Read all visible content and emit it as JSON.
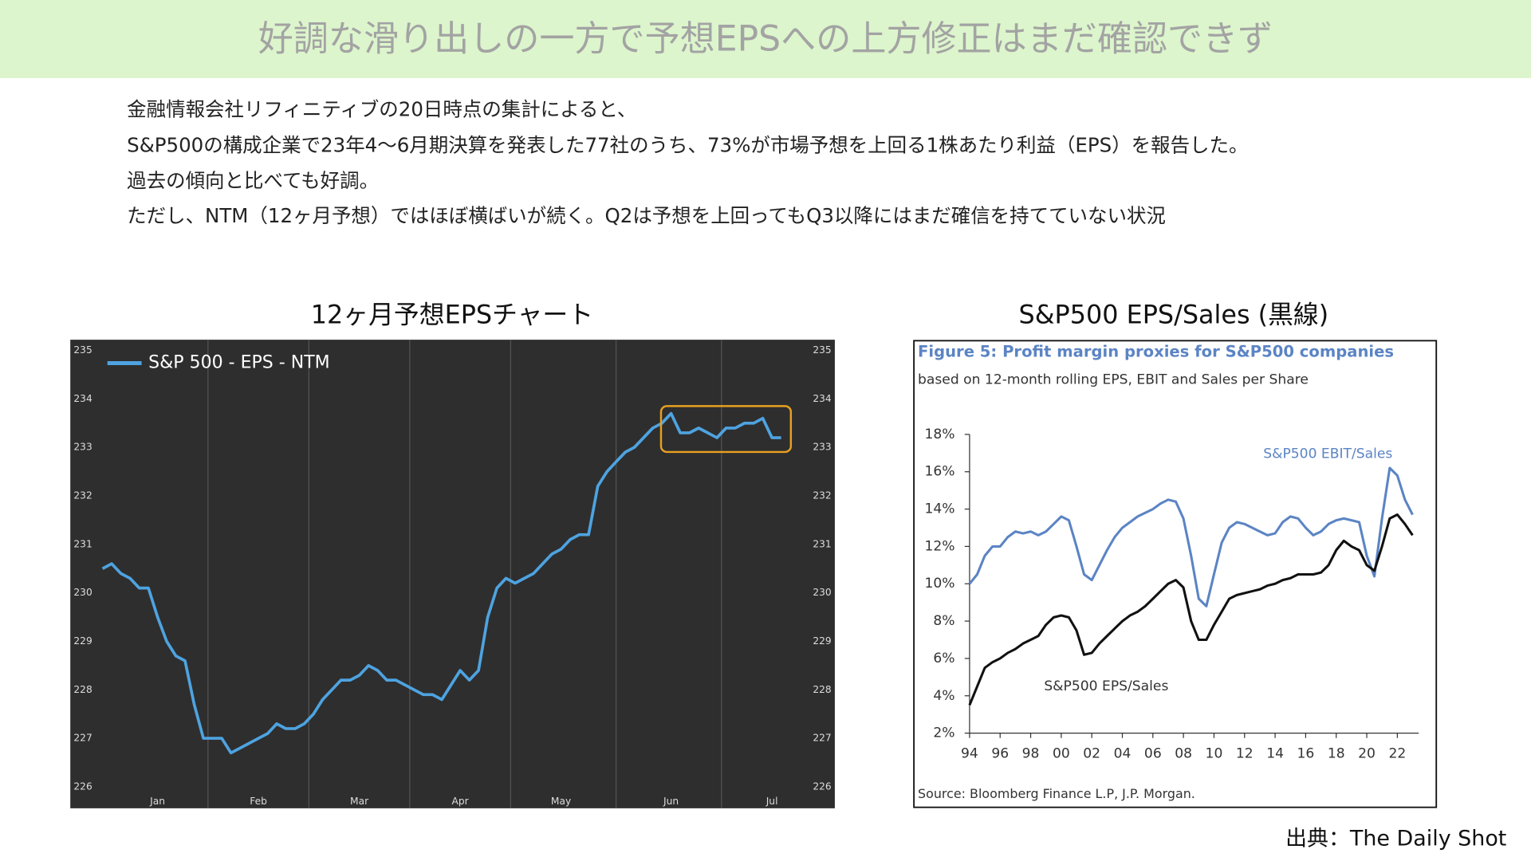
{
  "header": {
    "title": "好調な滑り出しの一方で予想EPSへの上方修正はまだ確認できず"
  },
  "body": {
    "lines": [
      "金融情報会社リフィニティブの20日時点の集計によると、",
      "S&P500の構成企業で23年4～6月期決算を発表した77社のうち、73%が市場予想を上回る1株あたり利益（EPS）を報告した。",
      "過去の傾向と比べても好調。",
      "ただし、NTM（12ヶ月予想）ではほぼ横ばいが続く。Q2は予想を上回ってもQ3以降にはまだ確信を持てていない状況"
    ]
  },
  "chart_data": [
    {
      "type": "line",
      "heading": "12ヶ月予想EPSチャート",
      "categories": [
        null,
        null,
        null,
        null,
        null,
        null,
        "Jan",
        null,
        null,
        null,
        null,
        null,
        null,
        null,
        null,
        null,
        null,
        "Feb",
        null,
        null,
        null,
        null,
        null,
        null,
        null,
        null,
        null,
        null,
        "Mar",
        null,
        null,
        null,
        null,
        null,
        null,
        null,
        null,
        null,
        null,
        "Apr",
        null,
        null,
        null,
        null,
        null,
        null,
        null,
        null,
        null,
        null,
        "May",
        null,
        null,
        null,
        null,
        null,
        null,
        null,
        null,
        null,
        null,
        null,
        "Jun",
        null,
        null,
        null,
        null,
        null,
        null,
        null,
        null,
        null,
        null,
        "Jul",
        null
      ],
      "series": [
        {
          "name": "S&P 500 - EPS - NTM",
          "color": "#4ea3e0",
          "values": [
            230.5,
            230.6,
            230.4,
            230.3,
            230.1,
            230.1,
            229.5,
            229.0,
            228.7,
            228.6,
            227.7,
            227.0,
            227.0,
            227.0,
            226.7,
            226.8,
            226.9,
            227.0,
            227.1,
            227.3,
            227.2,
            227.2,
            227.3,
            227.5,
            227.8,
            228.0,
            228.2,
            228.2,
            228.3,
            228.5,
            228.4,
            228.2,
            228.2,
            228.1,
            228.0,
            227.9,
            227.9,
            227.8,
            228.1,
            228.4,
            228.2,
            228.4,
            229.5,
            230.1,
            230.3,
            230.2,
            230.3,
            230.4,
            230.6,
            230.8,
            230.9,
            231.1,
            231.2,
            231.2,
            232.2,
            232.5,
            232.7,
            232.9,
            233.0,
            233.2,
            233.4,
            233.5,
            233.7,
            233.3,
            233.3,
            233.4,
            233.3,
            233.2,
            233.4,
            233.4,
            233.5,
            233.5,
            233.6,
            233.2,
            233.2
          ]
        }
      ],
      "ylim": [
        226,
        235
      ],
      "yticks": [
        226,
        227,
        228,
        229,
        230,
        231,
        232,
        233,
        234,
        235
      ],
      "y2lim": [
        226,
        235
      ],
      "y2ticks": [
        226,
        227,
        228,
        229,
        230,
        231,
        232,
        233,
        234,
        235
      ],
      "legend": "top-left"
    },
    {
      "type": "line",
      "heading": "S&P500 EPS/Sales (黒線)",
      "title": "Figure 5: Profit margin proxies for S&P500 companies",
      "subtitle": "based on 12-month rolling EPS, EBIT and Sales per Share",
      "x": [
        1994,
        1994.5,
        1995,
        1995.5,
        1996,
        1996.5,
        1997,
        1997.5,
        1998,
        1998.5,
        1999,
        1999.5,
        2000,
        2000.5,
        2001,
        2001.5,
        2002,
        2002.5,
        2003,
        2003.5,
        2004,
        2004.5,
        2005,
        2005.5,
        2006,
        2006.5,
        2007,
        2007.5,
        2008,
        2008.5,
        2009,
        2009.5,
        2010,
        2010.5,
        2011,
        2011.5,
        2012,
        2012.5,
        2013,
        2013.5,
        2014,
        2014.5,
        2015,
        2015.5,
        2016,
        2016.5,
        2017,
        2017.5,
        2018,
        2018.5,
        2019,
        2019.5,
        2020,
        2020.5,
        2021,
        2021.5,
        2022,
        2022.5,
        2023
      ],
      "series": [
        {
          "name": "S&P500 EBIT/Sales",
          "color": "#5b84c4",
          "values": [
            10.0,
            10.5,
            11.5,
            12.0,
            12.0,
            12.5,
            12.8,
            12.7,
            12.8,
            12.6,
            12.8,
            13.2,
            13.6,
            13.4,
            12.0,
            10.5,
            10.2,
            11.0,
            11.8,
            12.5,
            13.0,
            13.3,
            13.6,
            13.8,
            14.0,
            14.3,
            14.5,
            14.4,
            13.5,
            11.5,
            9.2,
            8.8,
            10.5,
            12.2,
            13.0,
            13.3,
            13.2,
            13.0,
            12.8,
            12.6,
            12.7,
            13.3,
            13.6,
            13.5,
            13.0,
            12.6,
            12.8,
            13.2,
            13.4,
            13.5,
            13.4,
            13.3,
            11.5,
            10.4,
            13.5,
            16.2,
            15.8,
            14.5,
            13.7
          ]
        },
        {
          "name": "S&P500 EPS/Sales",
          "color": "#111111",
          "values": [
            3.5,
            4.5,
            5.5,
            5.8,
            6.0,
            6.3,
            6.5,
            6.8,
            7.0,
            7.2,
            7.8,
            8.2,
            8.3,
            8.2,
            7.5,
            6.2,
            6.3,
            6.8,
            7.2,
            7.6,
            8.0,
            8.3,
            8.5,
            8.8,
            9.2,
            9.6,
            10.0,
            10.2,
            9.8,
            8.0,
            7.0,
            7.0,
            7.8,
            8.5,
            9.2,
            9.4,
            9.5,
            9.6,
            9.7,
            9.9,
            10.0,
            10.2,
            10.3,
            10.5,
            10.5,
            10.5,
            10.6,
            11.0,
            11.8,
            12.3,
            12.0,
            11.8,
            11.0,
            10.7,
            12.0,
            13.5,
            13.7,
            13.2,
            12.6
          ]
        }
      ],
      "xlim": [
        1994,
        2023.4
      ],
      "xticks": [
        {
          "value": 1994,
          "label": "94"
        },
        {
          "value": 1996,
          "label": "96"
        },
        {
          "value": 1998,
          "label": "98"
        },
        {
          "value": 2000,
          "label": "00"
        },
        {
          "value": 2002,
          "label": "02"
        },
        {
          "value": 2004,
          "label": "04"
        },
        {
          "value": 2006,
          "label": "06"
        },
        {
          "value": 2008,
          "label": "08"
        },
        {
          "value": 2010,
          "label": "10"
        },
        {
          "value": 2012,
          "label": "12"
        },
        {
          "value": 2014,
          "label": "14"
        },
        {
          "value": 2016,
          "label": "16"
        },
        {
          "value": 2018,
          "label": "18"
        },
        {
          "value": 2020,
          "label": "20"
        },
        {
          "value": 2022,
          "label": "22"
        }
      ],
      "ylim": [
        2,
        18
      ],
      "yticks": [
        {
          "value": 2,
          "label": "2%"
        },
        {
          "value": 4,
          "label": "4%"
        },
        {
          "value": 6,
          "label": "6%"
        },
        {
          "value": 8,
          "label": "8%"
        },
        {
          "value": 10,
          "label": "10%"
        },
        {
          "value": 12,
          "label": "12%"
        },
        {
          "value": 14,
          "label": "14%"
        },
        {
          "value": 16,
          "label": "16%"
        },
        {
          "value": 18,
          "label": "18%"
        }
      ],
      "source": "Source: Bloomberg Finance L.P, J.P. Morgan."
    }
  ],
  "source": "出典：The Daily Shot"
}
